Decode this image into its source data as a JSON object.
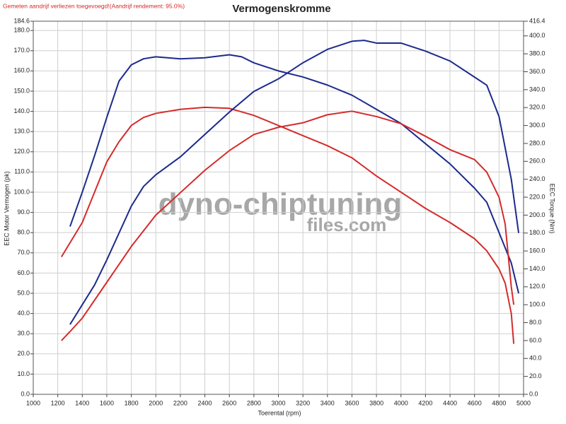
{
  "chart_data": {
    "type": "line",
    "title": "Vermogenskromme",
    "note": "Gemeten aandrijf verliezen toegevoegd!(Aandrijf rendement: 95.0%)",
    "watermark": [
      "dyno-chiptuning",
      "files.com"
    ],
    "x_label": "Toerental (rpm)",
    "y_label": "EEC Motor Vermogen (pk)",
    "y2_label": "EEC Torque (Nm)",
    "grid": true,
    "xlim": [
      1000,
      5000
    ],
    "xticks": [
      1000,
      1200,
      1400,
      1600,
      1800,
      2000,
      2200,
      2400,
      2600,
      2800,
      3000,
      3200,
      3400,
      3600,
      3800,
      4000,
      4200,
      4400,
      4600,
      4800,
      5000
    ],
    "ylim": [
      0,
      184.6
    ],
    "yticks": [
      {
        "value": 0,
        "label": "0.0"
      },
      {
        "value": 10,
        "label": "10.0"
      },
      {
        "value": 20,
        "label": "20.0"
      },
      {
        "value": 30,
        "label": "30.0"
      },
      {
        "value": 40,
        "label": "40.0"
      },
      {
        "value": 50,
        "label": "50.0"
      },
      {
        "value": 60,
        "label": "60.0"
      },
      {
        "value": 70,
        "label": "70.0"
      },
      {
        "value": 80,
        "label": "80.0"
      },
      {
        "value": 90,
        "label": "90.0"
      },
      {
        "value": 100,
        "label": "100.0"
      },
      {
        "value": 110,
        "label": "110.0"
      },
      {
        "value": 120,
        "label": "120.0"
      },
      {
        "value": 130,
        "label": "130.0"
      },
      {
        "value": 140,
        "label": "140.0"
      },
      {
        "value": 150,
        "label": "150.0"
      },
      {
        "value": 160,
        "label": "160.0"
      },
      {
        "value": 170,
        "label": "170.0"
      },
      {
        "value": 180,
        "label": "180.0"
      },
      184.6
    ],
    "y2lim": [
      0,
      416.4
    ],
    "y2ticks": [
      {
        "value": 0,
        "label": "0.0"
      },
      {
        "value": 20,
        "label": "20.0"
      },
      {
        "value": 40,
        "label": "40.0"
      },
      {
        "value": 60,
        "label": "60.0"
      },
      {
        "value": 80,
        "label": "80.0"
      },
      {
        "value": 100,
        "label": "100.0"
      },
      {
        "value": 120,
        "label": "120.0"
      },
      {
        "value": 140,
        "label": "140.0"
      },
      {
        "value": 160,
        "label": "160.0"
      },
      {
        "value": 180,
        "label": "180.0"
      },
      {
        "value": 200,
        "label": "200.0"
      },
      {
        "value": 220,
        "label": "220.0"
      },
      {
        "value": 240,
        "label": "240.0"
      },
      {
        "value": 260,
        "label": "260.0"
      },
      {
        "value": 280,
        "label": "280.0"
      },
      {
        "value": 300,
        "label": "300.0"
      },
      {
        "value": 320,
        "label": "320.0"
      },
      {
        "value": 340,
        "label": "340.0"
      },
      {
        "value": 360,
        "label": "360.0"
      },
      {
        "value": 380,
        "label": "380.0"
      },
      {
        "value": 400,
        "label": "400.0"
      },
      416.4
    ],
    "series": [
      {
        "color": "#1c2a8c",
        "x": [
          1300,
          1400,
          1500,
          1600,
          1700,
          1800,
          1900,
          2000,
          2200,
          2400,
          2600,
          2700,
          2800,
          3000,
          3200,
          3400,
          3600,
          3800,
          4000,
          4200,
          4400,
          4600,
          4700,
          4800,
          4900,
          4960
        ],
        "values": [
          83,
          100,
          118,
          137,
          155,
          163,
          166,
          167,
          166,
          166.5,
          168,
          167,
          164,
          160,
          157,
          153,
          148,
          141,
          134,
          124,
          114,
          102,
          95,
          80,
          65,
          50
        ]
      },
      {
        "color": "#d42b2b",
        "x": [
          1230,
          1300,
          1400,
          1500,
          1600,
          1700,
          1800,
          1900,
          2000,
          2200,
          2400,
          2600,
          2800,
          3000,
          3200,
          3400,
          3600,
          3800,
          4000,
          4200,
          4400,
          4600,
          4700,
          4800,
          4850,
          4900,
          4920
        ],
        "values": [
          68,
          75,
          85,
          100,
          115,
          125,
          133,
          137,
          139,
          141,
          142,
          141.5,
          138,
          133,
          128,
          123,
          117,
          108,
          100,
          92,
          85,
          77,
          71,
          62,
          55,
          40,
          25
        ]
      },
      {
        "color": "#1c2a8c",
        "axis": "y2",
        "x": [
          1300,
          1400,
          1500,
          1600,
          1700,
          1800,
          1900,
          2000,
          2200,
          2400,
          2600,
          2800,
          3000,
          3200,
          3400,
          3600,
          3700,
          3800,
          4000,
          4200,
          4400,
          4600,
          4700,
          4800,
          4900,
          4960
        ],
        "values": [
          78,
          100,
          122,
          150,
          180,
          210,
          232,
          245,
          265,
          290,
          315,
          338,
          352,
          370,
          385,
          394,
          395,
          392,
          392,
          383,
          372,
          354,
          345,
          310,
          240,
          180
        ]
      },
      {
        "color": "#d42b2b",
        "axis": "y2",
        "x": [
          1230,
          1300,
          1400,
          1600,
          1800,
          2000,
          2200,
          2400,
          2600,
          2800,
          3000,
          3200,
          3400,
          3600,
          3800,
          4000,
          4200,
          4400,
          4600,
          4700,
          4800,
          4850,
          4900,
          4920
        ],
        "values": [
          60,
          70,
          85,
          125,
          165,
          200,
          225,
          250,
          272,
          290,
          298,
          303,
          312,
          316,
          310,
          302,
          288,
          273,
          262,
          248,
          220,
          190,
          120,
          100
        ]
      }
    ]
  }
}
